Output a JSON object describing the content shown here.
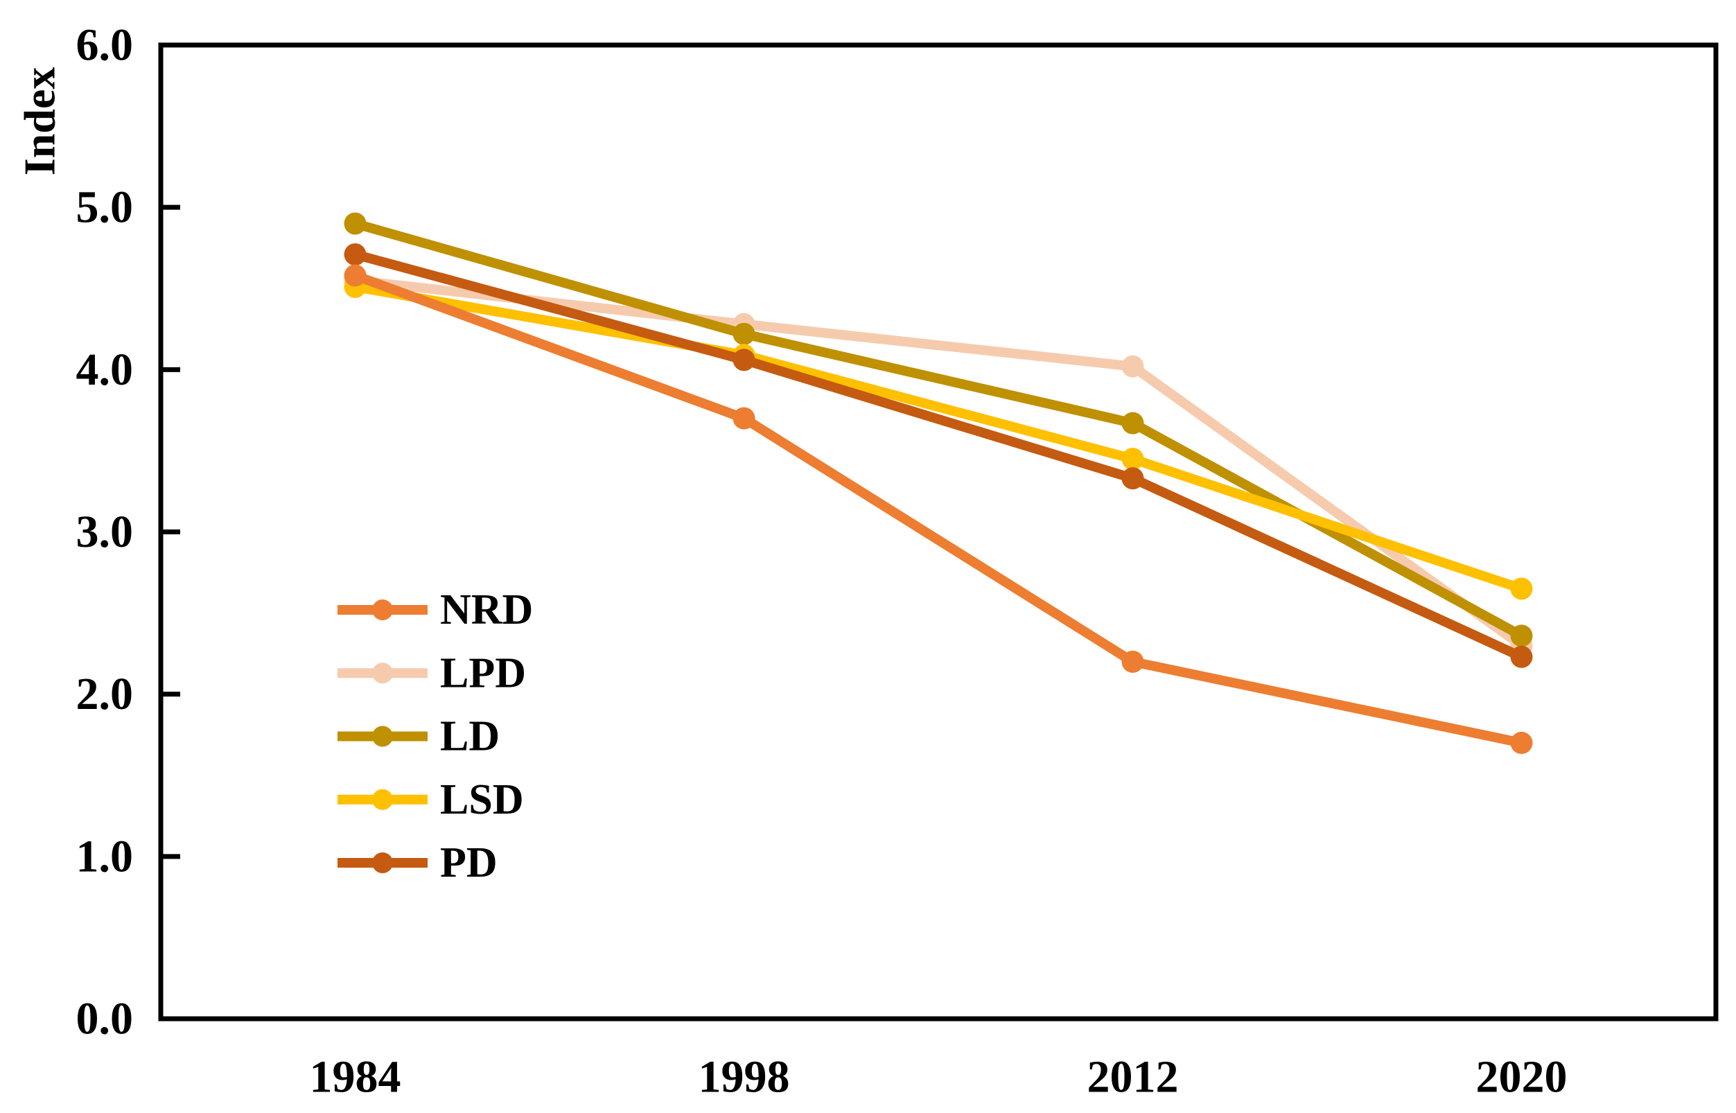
{
  "chart_data": {
    "type": "line",
    "title": "",
    "xlabel": "",
    "ylabel": "Index",
    "categories": [
      "1984",
      "1998",
      "2012",
      "2020"
    ],
    "ylim": [
      0,
      6
    ],
    "ytick_values": [
      0,
      1,
      2,
      3,
      4,
      5,
      6
    ],
    "yticks": [
      "0.0",
      "1.0",
      "2.0",
      "3.0",
      "4.0",
      "5.0",
      "6.0"
    ],
    "grid": false,
    "legend_position": "inside-left-middle",
    "legend_order": [
      "NRD",
      "LPD",
      "LD",
      "LSD",
      "PD"
    ],
    "axis_color": "#000000",
    "background_color": "#ffffff",
    "series": [
      {
        "name": "LPD",
        "color": "#F6CBAD",
        "values": [
          4.55,
          4.28,
          4.02,
          2.3
        ]
      },
      {
        "name": "LD",
        "color": "#BF9000",
        "values": [
          4.9,
          4.22,
          3.67,
          2.36
        ]
      },
      {
        "name": "LSD",
        "color": "#FFC000",
        "values": [
          4.51,
          4.09,
          3.45,
          2.65
        ]
      },
      {
        "name": "PD",
        "color": "#C55A11",
        "values": [
          4.71,
          4.06,
          3.33,
          2.23
        ]
      },
      {
        "name": "NRD",
        "color": "#ED7D31",
        "values": [
          4.58,
          3.7,
          2.2,
          1.7
        ]
      }
    ]
  }
}
